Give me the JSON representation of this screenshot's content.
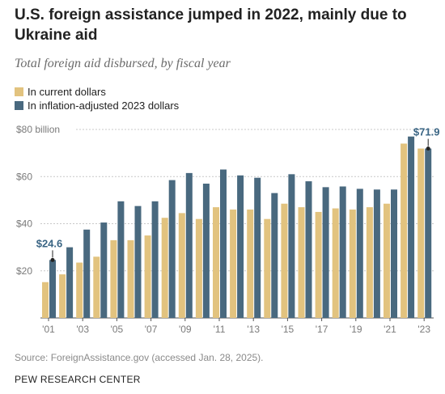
{
  "title": "U.S. foreign assistance jumped in 2022, mainly due to Ukraine aid",
  "subtitle": "Total foreign aid disbursed, by fiscal year",
  "source": "Source: ForeignAssistance.gov (accessed Jan. 28, 2025).",
  "org": "PEW RESEARCH CENTER",
  "colors": {
    "current": "#e2c37f",
    "adjusted": "#49697f",
    "grid": "#c8c8c8",
    "annotation": "#3a6584"
  },
  "chart_data": {
    "type": "bar",
    "categories": [
      "2001",
      "2002",
      "2003",
      "2004",
      "2005",
      "2006",
      "2007",
      "2008",
      "2009",
      "2010",
      "2011",
      "2012",
      "2013",
      "2014",
      "2015",
      "2016",
      "2017",
      "2018",
      "2019",
      "2020",
      "2021",
      "2022",
      "2023"
    ],
    "tick_labels": [
      "'01",
      "'03",
      "'05",
      "'07",
      "'09",
      "'11",
      "'13",
      "'15",
      "'17",
      "'19",
      "'21",
      "'23"
    ],
    "series": [
      {
        "name": "In current dollars",
        "values": [
          15.2,
          18.5,
          23.5,
          26.0,
          33.0,
          33.0,
          35.0,
          42.5,
          44.5,
          42.0,
          47.0,
          46.0,
          46.0,
          42.0,
          48.5,
          47.0,
          45.0,
          46.5,
          46.0,
          47.0,
          48.5,
          74.0,
          71.9
        ]
      },
      {
        "name": "In inflation-adjusted 2023 dollars",
        "values": [
          24.6,
          30.0,
          37.5,
          40.5,
          49.5,
          47.5,
          49.5,
          58.5,
          61.5,
          57.0,
          63.0,
          60.5,
          59.5,
          53.0,
          61.0,
          58.0,
          55.5,
          55.8,
          54.8,
          54.5,
          54.5,
          77.0,
          71.9
        ]
      }
    ],
    "y_ticks": [
      {
        "value": 20,
        "label": "$20"
      },
      {
        "value": 40,
        "label": "$40"
      },
      {
        "value": 60,
        "label": "$60"
      },
      {
        "value": 80,
        "label": "$80 billion"
      }
    ],
    "ylim": [
      0,
      80
    ],
    "annotations": [
      {
        "label": "$24.6",
        "category": "2001",
        "series": 1
      },
      {
        "label": "$71.9",
        "category": "2023",
        "series": 1
      }
    ],
    "legend_position": "top-left",
    "grid": true
  }
}
